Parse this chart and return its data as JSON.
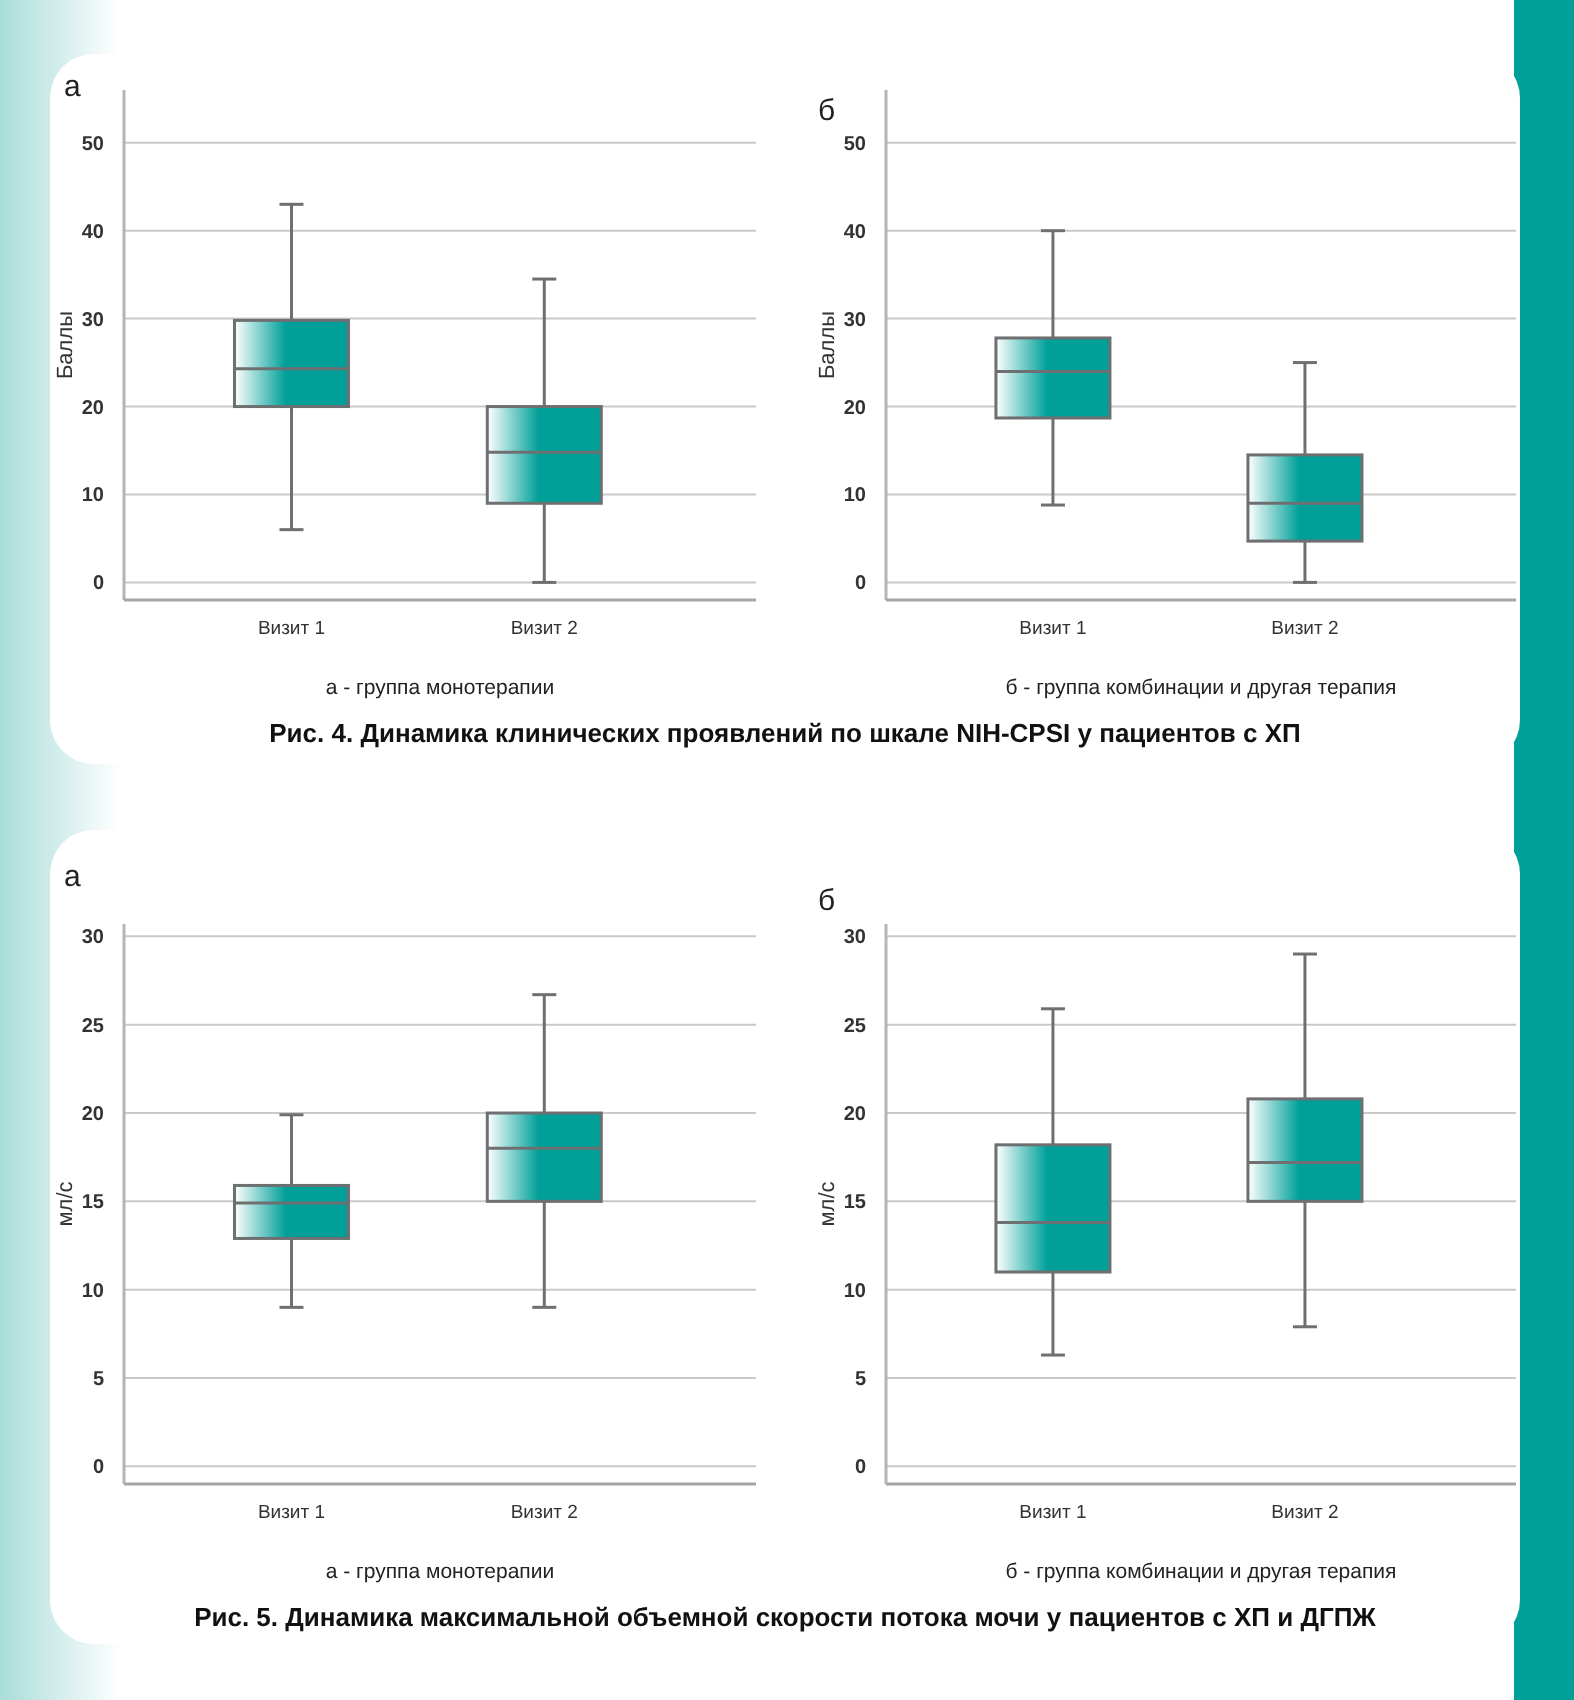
{
  "chart_data": [
    {
      "type": "box",
      "title": "а",
      "ylabel": "Баллы",
      "categories": [
        "Визит 1",
        "Визит 2"
      ],
      "color": "#00a099",
      "boxes": [
        {
          "low": 6,
          "q1": 20,
          "median": 24.3,
          "q3": 29.8,
          "high": 43
        },
        {
          "low": 0,
          "q1": 9,
          "median": 14.8,
          "q3": 20,
          "high": 34.5
        }
      ],
      "ylim": [
        -2,
        56
      ],
      "yticks": [
        0,
        10,
        20,
        30,
        40,
        50
      ],
      "grid": "y",
      "annotations": [
        "а - группа монотерапии",
        "Рис. 4. Динамика клинических проявлений по шкале NIH-CPSI у пациентов с ХП"
      ]
    },
    {
      "type": "box",
      "title": "б",
      "ylabel": "Баллы",
      "categories": [
        "Визит 1",
        "Визит 2"
      ],
      "color": "#00a099",
      "boxes": [
        {
          "low": 8.8,
          "q1": 18.7,
          "median": 24,
          "q3": 27.8,
          "high": 40
        },
        {
          "low": 0,
          "q1": 4.7,
          "median": 9,
          "q3": 14.5,
          "high": 25
        }
      ],
      "ylim": [
        -2,
        56
      ],
      "yticks": [
        0,
        10,
        20,
        30,
        40,
        50
      ],
      "grid": "y",
      "annotations": [
        "б - группа комбинации и другая терапия"
      ]
    },
    {
      "type": "box",
      "title": "а",
      "ylabel": "мл/с",
      "categories": [
        "Визит 1",
        "Визит 2"
      ],
      "color": "#00a099",
      "boxes": [
        {
          "low": 9,
          "q1": 12.9,
          "median": 14.9,
          "q3": 15.9,
          "high": 19.9
        },
        {
          "low": 9,
          "q1": 15,
          "median": 18,
          "q3": 20,
          "high": 26.7
        }
      ],
      "ylim": [
        -1,
        30.7
      ],
      "yticks": [
        0,
        5,
        10,
        15,
        20,
        25,
        30
      ],
      "grid": "y",
      "annotations": [
        "а - группа монотерапии",
        "Рис. 5. Динамика максимальной объемной скорости потока мочи у пациентов с ХП и ДГПЖ"
      ]
    },
    {
      "type": "box",
      "title": "б",
      "ylabel": "мл/с",
      "categories": [
        "Визит 1",
        "Визит 2"
      ],
      "color": "#00a099",
      "boxes": [
        {
          "low": 6.3,
          "q1": 11,
          "median": 13.8,
          "q3": 18.2,
          "high": 25.9
        },
        {
          "low": 7.9,
          "q1": 15,
          "median": 17.2,
          "q3": 20.8,
          "high": 29
        }
      ],
      "ylim": [
        -1,
        30.7
      ],
      "yticks": [
        0,
        5,
        10,
        15,
        20,
        25,
        30
      ],
      "grid": "y",
      "annotations": [
        "б - группа комбинации и другая терапия"
      ]
    }
  ]
}
